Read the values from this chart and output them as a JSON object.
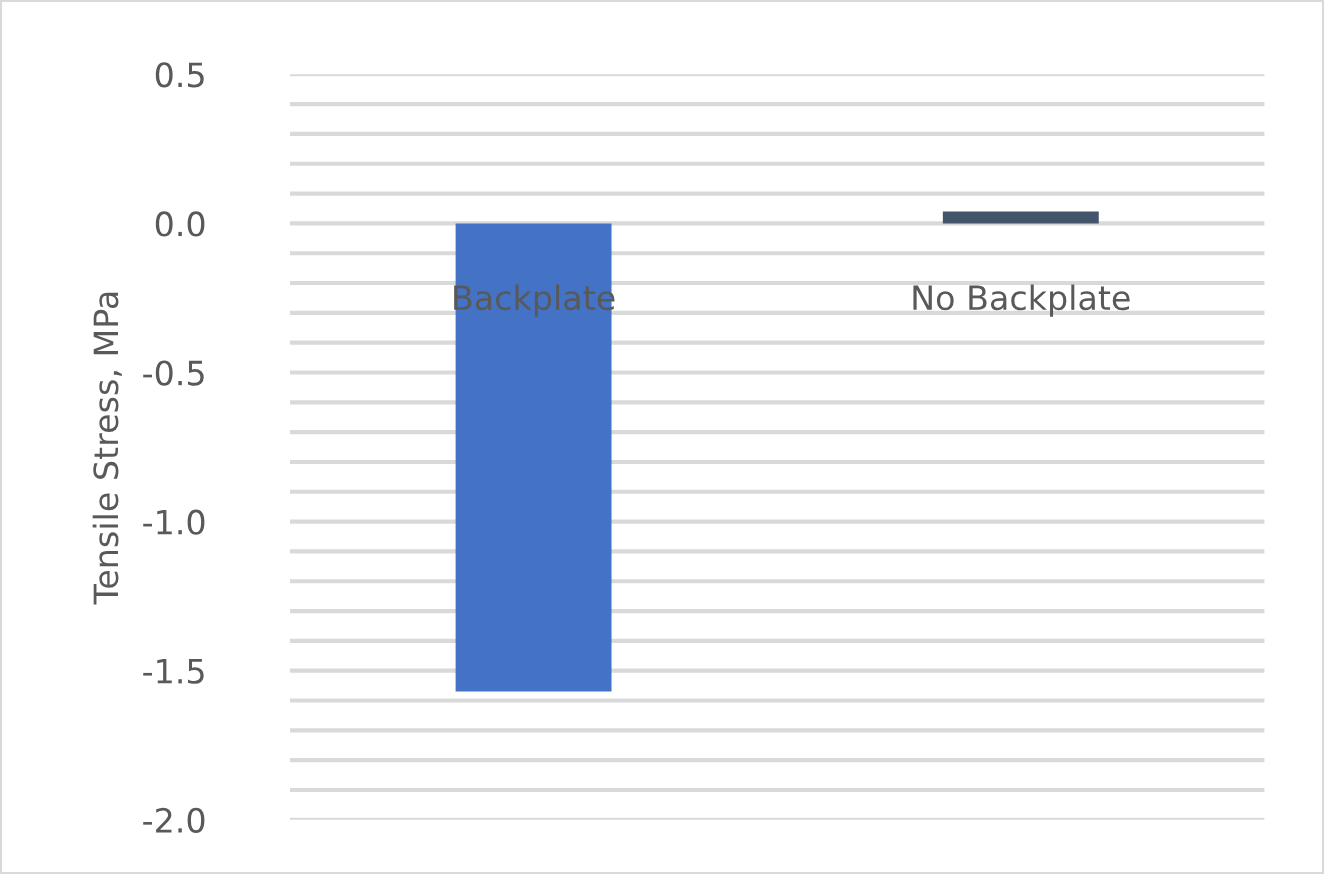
{
  "chart_data": {
    "type": "bar",
    "ylabel": "Tensile Stress, MPa",
    "categories": [
      "Backplate",
      "No Backplate"
    ],
    "values": [
      -1.57,
      0.04
    ],
    "colors": [
      "#4472c4",
      "#44546a"
    ],
    "ylim": [
      -2.0,
      0.5
    ],
    "yticks": [
      {
        "value": -2.0,
        "label": "-2.0"
      },
      {
        "value": -1.9,
        "label": null
      },
      {
        "value": -1.8,
        "label": null
      },
      {
        "value": -1.7,
        "label": null
      },
      {
        "value": -1.6,
        "label": null
      },
      {
        "value": -1.5,
        "label": "-1.5"
      },
      {
        "value": -1.4,
        "label": null
      },
      {
        "value": -1.3,
        "label": null
      },
      {
        "value": -1.2,
        "label": null
      },
      {
        "value": -1.1,
        "label": null
      },
      {
        "value": -1.0,
        "label": "-1.0"
      },
      {
        "value": -0.9,
        "label": null
      },
      {
        "value": -0.8,
        "label": null
      },
      {
        "value": -0.7,
        "label": null
      },
      {
        "value": -0.6,
        "label": null
      },
      {
        "value": -0.5,
        "label": "-0.5"
      },
      {
        "value": -0.4,
        "label": null
      },
      {
        "value": -0.3,
        "label": null
      },
      {
        "value": -0.2,
        "label": null
      },
      {
        "value": -0.1,
        "label": null
      },
      {
        "value": 0.0,
        "label": "0.0"
      },
      {
        "value": 0.1,
        "label": null
      },
      {
        "value": 0.2,
        "label": null
      },
      {
        "value": 0.3,
        "label": null
      },
      {
        "value": 0.4,
        "label": null
      },
      {
        "value": 0.5,
        "label": "0.5"
      }
    ],
    "grid": "y"
  }
}
